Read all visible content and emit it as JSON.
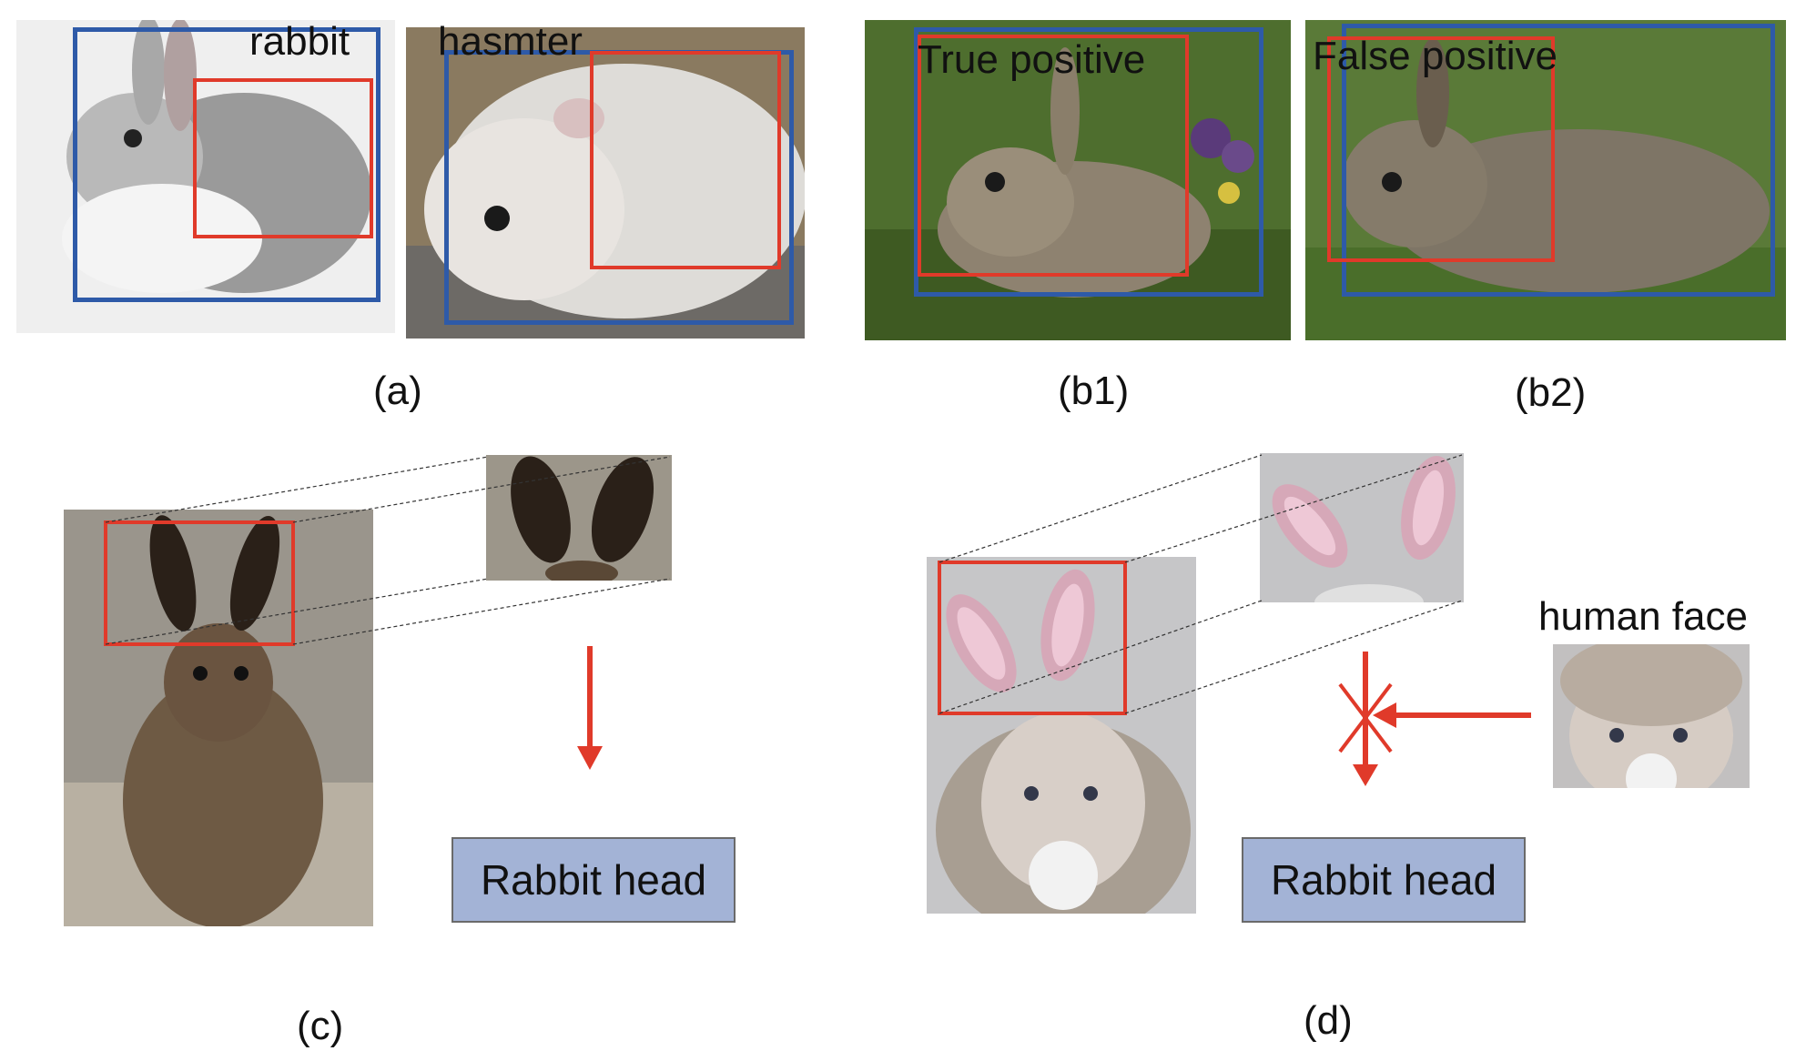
{
  "panel_a": {
    "label_rabbit": "rabbit",
    "label_hamster": "hasmter",
    "caption": "(a)"
  },
  "panel_b1": {
    "label": "True positive",
    "caption": "(b1)"
  },
  "panel_b2": {
    "label": "False positive",
    "caption": "(b2)"
  },
  "panel_c": {
    "box_label": "Rabbit head",
    "caption": "(c)"
  },
  "panel_d": {
    "box_label": "Rabbit head",
    "face_label": "human face",
    "caption": "(d)"
  },
  "colors": {
    "detection_box": "#2e5aa8",
    "part_box": "#e03a2a",
    "head_box_fill": "#a3b3d6"
  }
}
